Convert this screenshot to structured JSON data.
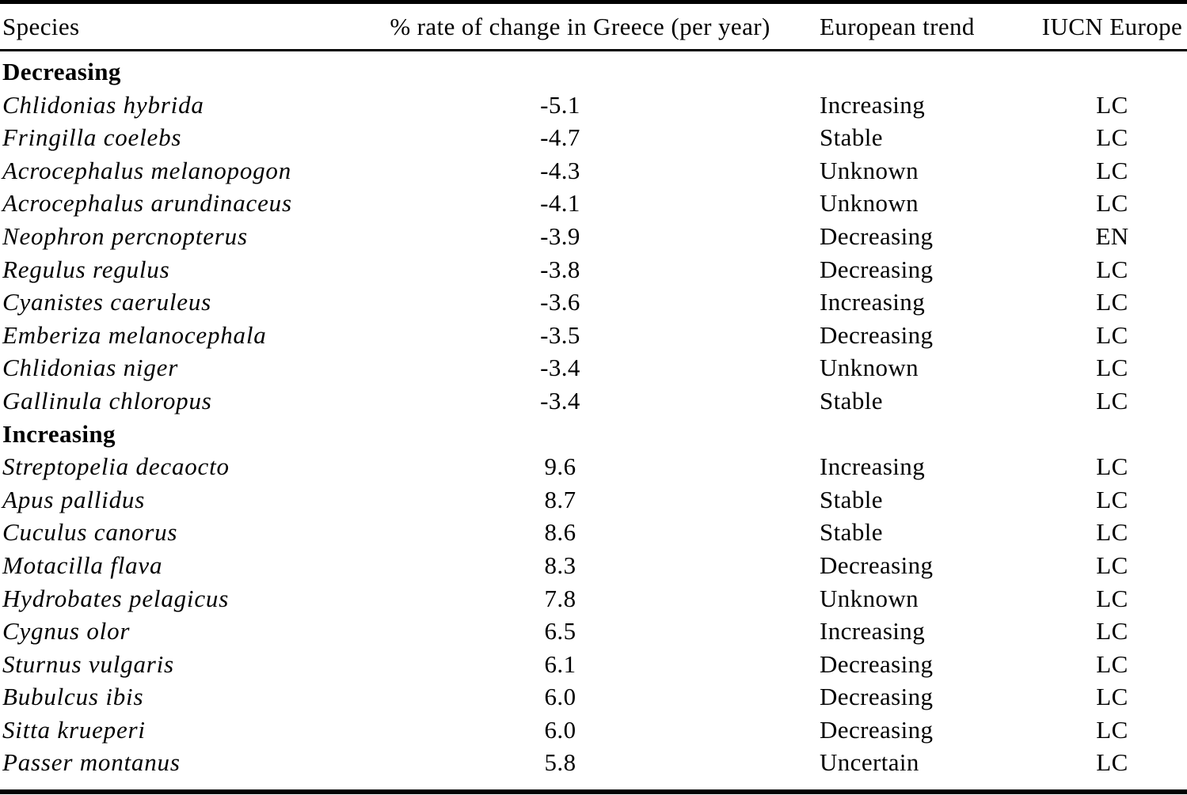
{
  "colors": {
    "background": "#ffffff",
    "text": "#000000",
    "rule": "#000000"
  },
  "table": {
    "headers": {
      "species": "Species",
      "rate": "% rate of change in Greece (per year)",
      "trend": "European trend",
      "iucn": "IUCN Europe"
    },
    "sections": [
      {
        "label": "Decreasing",
        "rows": [
          {
            "species": "Chlidonias hybrida",
            "rate": "-5.1",
            "trend": "Increasing",
            "iucn": "LC"
          },
          {
            "species": "Fringilla coelebs",
            "rate": "-4.7",
            "trend": "Stable",
            "iucn": "LC"
          },
          {
            "species": "Acrocephalus melanopogon",
            "rate": "-4.3",
            "trend": "Unknown",
            "iucn": "LC"
          },
          {
            "species": "Acrocephalus arundinaceus",
            "rate": "-4.1",
            "trend": "Unknown",
            "iucn": "LC"
          },
          {
            "species": "Neophron percnopterus",
            "rate": "-3.9",
            "trend": "Decreasing",
            "iucn": "EN"
          },
          {
            "species": "Regulus regulus",
            "rate": "-3.8",
            "trend": "Decreasing",
            "iucn": "LC"
          },
          {
            "species": "Cyanistes caeruleus",
            "rate": "-3.6",
            "trend": "Increasing",
            "iucn": "LC"
          },
          {
            "species": "Emberiza melanocephala",
            "rate": "-3.5",
            "trend": "Decreasing",
            "iucn": "LC"
          },
          {
            "species": "Chlidonias niger",
            "rate": "-3.4",
            "trend": "Unknown",
            "iucn": "LC"
          },
          {
            "species": "Gallinula chloropus",
            "rate": "-3.4",
            "trend": "Stable",
            "iucn": "LC"
          }
        ]
      },
      {
        "label": "Increasing",
        "rows": [
          {
            "species": "Streptopelia decaocto",
            "rate": "9.6",
            "trend": "Increasing",
            "iucn": "LC"
          },
          {
            "species": "Apus pallidus",
            "rate": "8.7",
            "trend": "Stable",
            "iucn": "LC"
          },
          {
            "species": "Cuculus canorus",
            "rate": "8.6",
            "trend": "Stable",
            "iucn": "LC"
          },
          {
            "species": "Motacilla flava",
            "rate": "8.3",
            "trend": "Decreasing",
            "iucn": "LC"
          },
          {
            "species": "Hydrobates pelagicus",
            "rate": "7.8",
            "trend": "Unknown",
            "iucn": "LC"
          },
          {
            "species": "Cygnus olor",
            "rate": "6.5",
            "trend": "Increasing",
            "iucn": "LC"
          },
          {
            "species": "Sturnus vulgaris",
            "rate": "6.1",
            "trend": "Decreasing",
            "iucn": "LC"
          },
          {
            "species": "Bubulcus ibis",
            "rate": "6.0",
            "trend": "Decreasing",
            "iucn": "LC"
          },
          {
            "species": "Sitta krueperi",
            "rate": "6.0",
            "trend": "Decreasing",
            "iucn": "LC"
          },
          {
            "species": "Passer montanus",
            "rate": "5.8",
            "trend": "Uncertain",
            "iucn": "LC"
          }
        ]
      }
    ]
  }
}
